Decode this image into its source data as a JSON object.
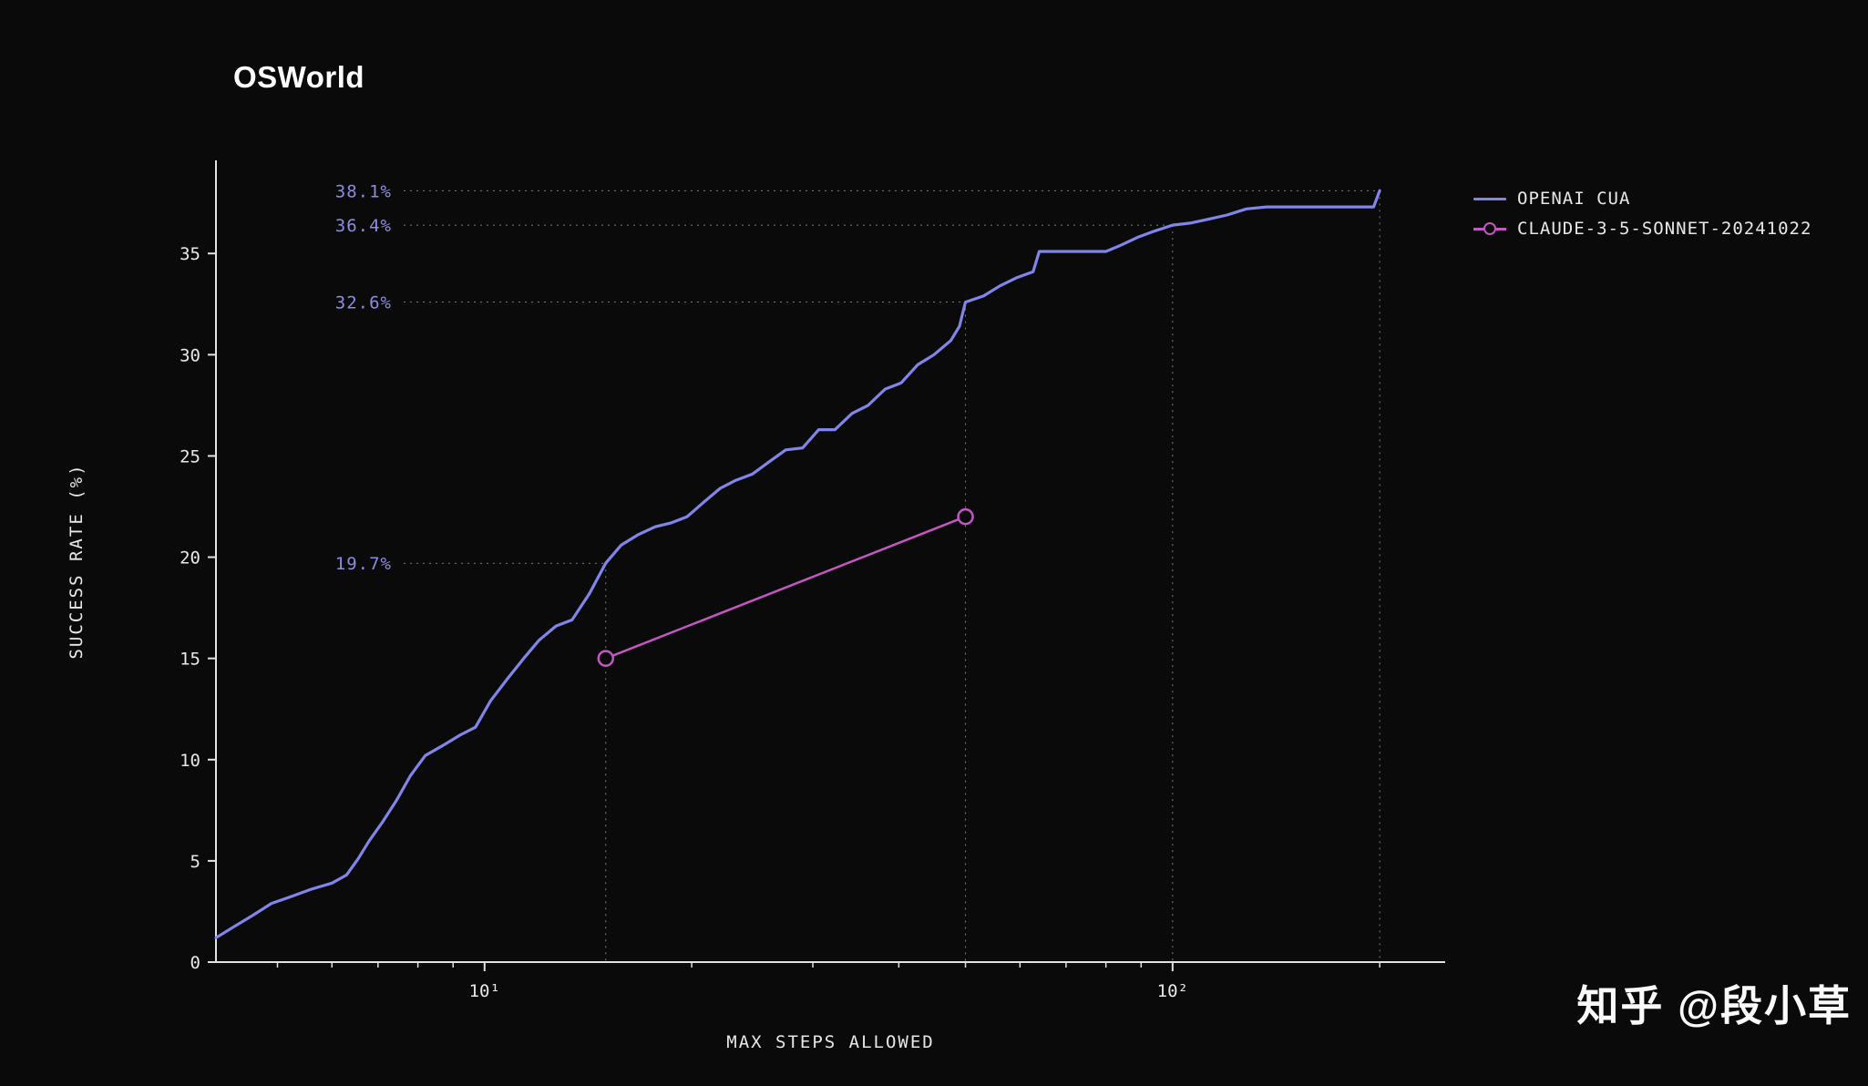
{
  "title": "OSWorld",
  "watermark": "知乎 @段小草",
  "colors": {
    "background": "#0a0a0a",
    "axis": "#e2e2e2",
    "tick_text": "#e8e8e8",
    "guide": "#7d7d7d",
    "annotation_text": "#8c8ce0",
    "cua_line": "#8184e8",
    "claude_line": "#c158c1"
  },
  "chart_data": {
    "type": "line",
    "title": "OSWorld",
    "xlabel": "MAX STEPS ALLOWED",
    "ylabel": "SUCCESS RATE (%)",
    "x_scale": "log",
    "xlim": [
      4.07,
      249
    ],
    "ylim": [
      0,
      39.6
    ],
    "yticks": [
      0,
      5,
      10,
      15,
      20,
      25,
      30,
      35
    ],
    "xticks_major": [
      {
        "value": 10,
        "label": "10¹"
      },
      {
        "value": 100,
        "label": "10²"
      }
    ],
    "xticks_minor": [
      5,
      6,
      7,
      8,
      9,
      20,
      30,
      40,
      50,
      60,
      70,
      80,
      90,
      200
    ],
    "grid": false,
    "legend_position": "top-right",
    "series": [
      {
        "name": "OPENAI CUA",
        "color": "#8184e8",
        "marker": "none",
        "points": [
          [
            4.07,
            1.2
          ],
          [
            4.3,
            1.7
          ],
          [
            4.6,
            2.3
          ],
          [
            4.9,
            2.9
          ],
          [
            5.2,
            3.2
          ],
          [
            5.6,
            3.6
          ],
          [
            6.0,
            3.9
          ],
          [
            6.3,
            4.3
          ],
          [
            6.55,
            5.1
          ],
          [
            6.8,
            6.0
          ],
          [
            7.1,
            6.9
          ],
          [
            7.45,
            8.0
          ],
          [
            7.8,
            9.2
          ],
          [
            8.2,
            10.2
          ],
          [
            8.7,
            10.7
          ],
          [
            9.2,
            11.2
          ],
          [
            9.7,
            11.6
          ],
          [
            10.2,
            12.9
          ],
          [
            10.8,
            14.0
          ],
          [
            11.4,
            15.0
          ],
          [
            12.0,
            15.9
          ],
          [
            12.7,
            16.6
          ],
          [
            13.4,
            16.9
          ],
          [
            14.2,
            18.2
          ],
          [
            15.0,
            19.7
          ],
          [
            15.8,
            20.6
          ],
          [
            16.7,
            21.1
          ],
          [
            17.7,
            21.5
          ],
          [
            18.7,
            21.7
          ],
          [
            19.7,
            22.0
          ],
          [
            20.8,
            22.7
          ],
          [
            22.0,
            23.4
          ],
          [
            23.2,
            23.8
          ],
          [
            24.5,
            24.1
          ],
          [
            25.9,
            24.7
          ],
          [
            27.4,
            25.3
          ],
          [
            29.0,
            25.4
          ],
          [
            30.6,
            26.3
          ],
          [
            32.3,
            26.3
          ],
          [
            34.2,
            27.1
          ],
          [
            36.1,
            27.5
          ],
          [
            38.2,
            28.3
          ],
          [
            40.3,
            28.6
          ],
          [
            42.6,
            29.5
          ],
          [
            45.0,
            30.0
          ],
          [
            47.6,
            30.7
          ],
          [
            49.0,
            31.4
          ],
          [
            50.0,
            32.6
          ],
          [
            53.1,
            32.9
          ],
          [
            56.1,
            33.4
          ],
          [
            59.3,
            33.8
          ],
          [
            62.7,
            34.1
          ],
          [
            64.0,
            35.1
          ],
          [
            80.0,
            35.1
          ],
          [
            84.0,
            35.4
          ],
          [
            89.0,
            35.8
          ],
          [
            94.0,
            36.1
          ],
          [
            100.0,
            36.4
          ],
          [
            106.0,
            36.5
          ],
          [
            113.0,
            36.7
          ],
          [
            120.0,
            36.9
          ],
          [
            128.0,
            37.2
          ],
          [
            137.0,
            37.3
          ],
          [
            196.0,
            37.3
          ],
          [
            200.0,
            38.1
          ]
        ]
      },
      {
        "name": "CLAUDE-3-5-SONNET-20241022",
        "color": "#c158c1",
        "marker": "circle",
        "points": [
          [
            15,
            15
          ],
          [
            50,
            22
          ]
        ]
      }
    ],
    "annotations": [
      {
        "label": "38.1%",
        "x": 200,
        "y": 38.1
      },
      {
        "label": "36.4%",
        "x": 100,
        "y": 36.4
      },
      {
        "label": "32.6%",
        "x": 50,
        "y": 32.6
      },
      {
        "label": "19.7%",
        "x": 15,
        "y": 19.7
      }
    ]
  }
}
